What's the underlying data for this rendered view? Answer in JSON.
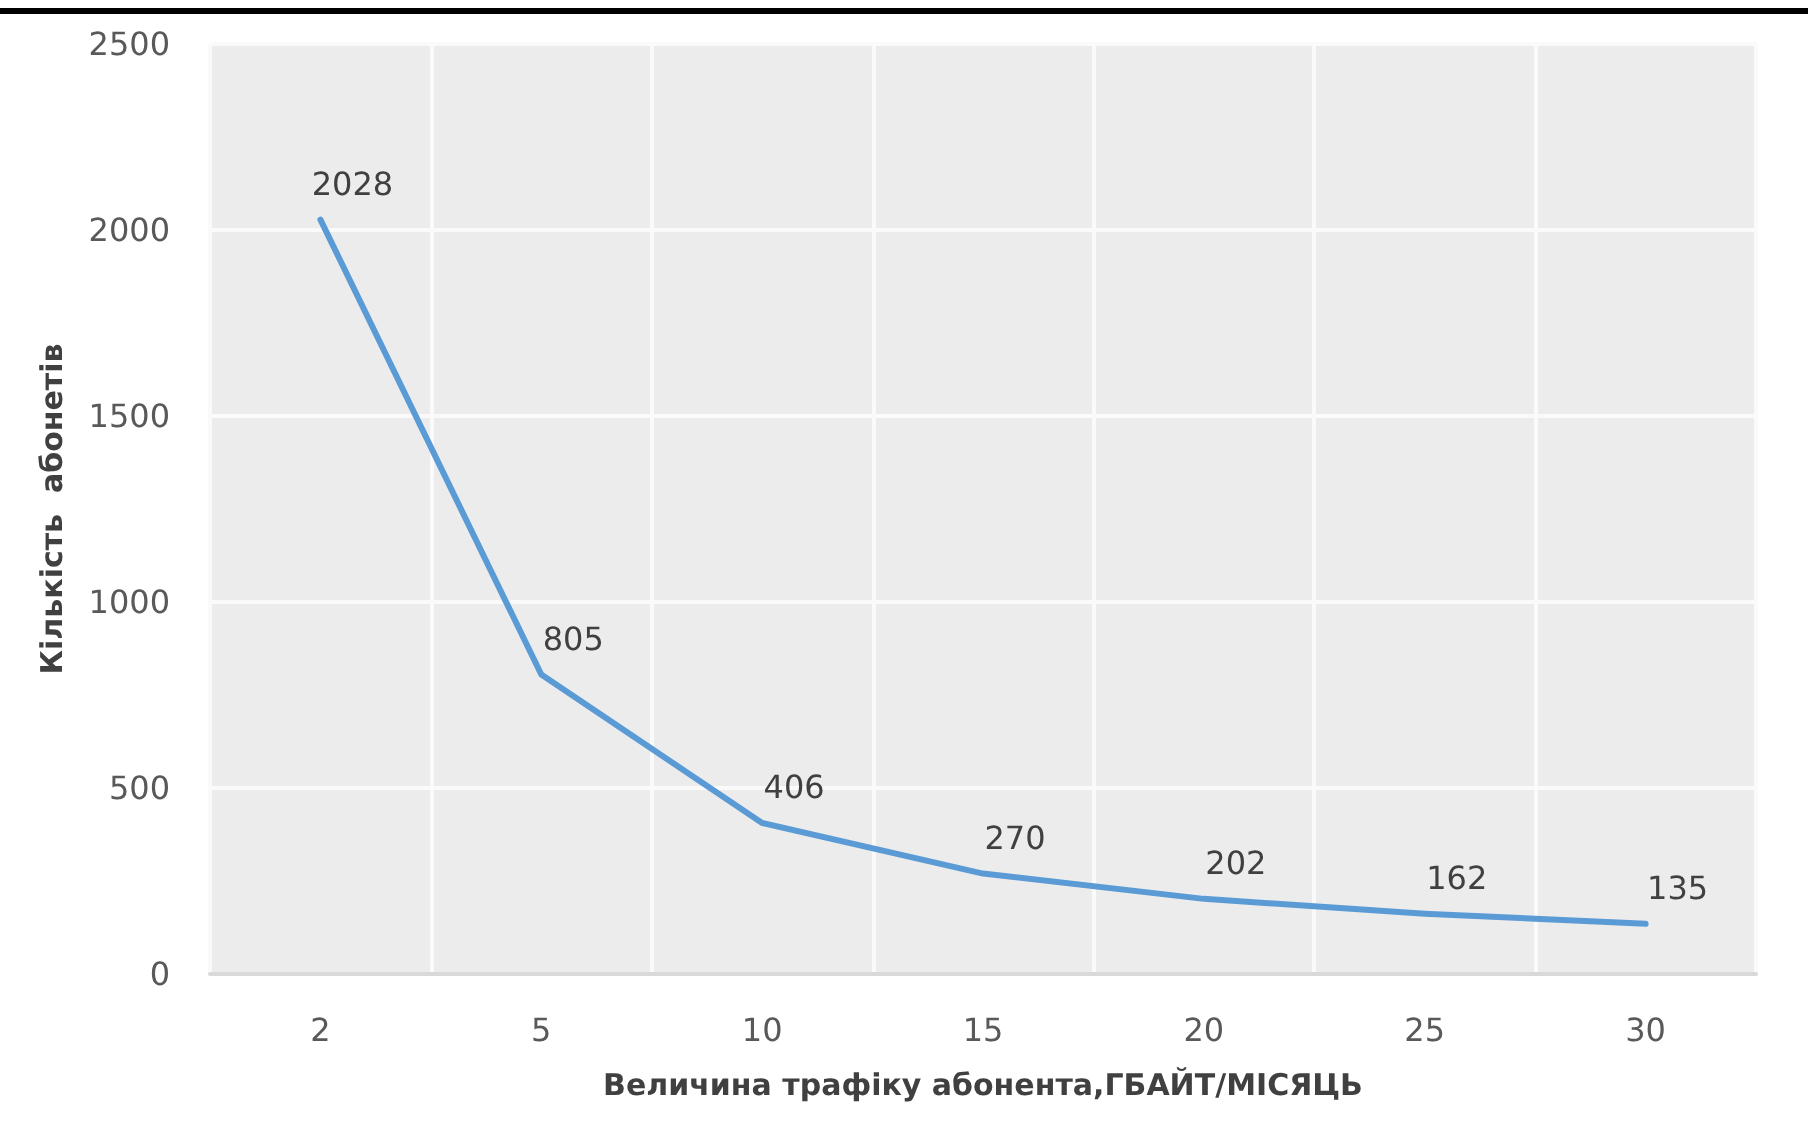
{
  "chart_data": {
    "type": "line",
    "xlabel": "Величина трафіку абонента,ГБАЙТ/МІСЯЦЬ",
    "ylabel": "Кількість  абонетів",
    "categories": [
      "2",
      "5",
      "10",
      "15",
      "20",
      "25",
      "30"
    ],
    "series": [
      {
        "color": "#5b9bd5",
        "values": [
          2028,
          805,
          406,
          270,
          202,
          162,
          135
        ]
      }
    ],
    "ylim": [
      0,
      2500
    ],
    "yticks": [
      0,
      500,
      1000,
      1500,
      2000,
      2500
    ],
    "grid": true,
    "marker": "none",
    "line_style": "solid",
    "data_labels": true
  }
}
